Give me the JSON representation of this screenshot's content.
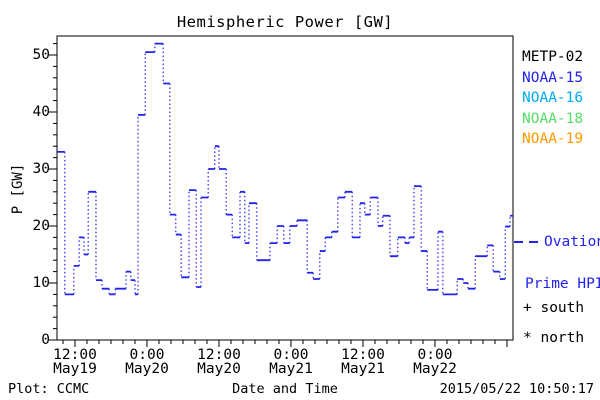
{
  "title": "Hemispheric Power [GW]",
  "axes": {
    "x_label": "Date and Time",
    "y_label": "P [GW]",
    "y_ticks": [
      0,
      10,
      20,
      30,
      40,
      50
    ],
    "y_minor_step": 2,
    "ylim": [
      0,
      53.3
    ],
    "x_start": "2015-05-19 09:00 UT",
    "xlim_hours": [
      0,
      76
    ],
    "x_minor_step_hours": 2,
    "x_major_ticks": [
      {
        "hours": 3,
        "time": "12:00",
        "date": "May19"
      },
      {
        "hours": 15,
        "time": "0:00",
        "date": "May20"
      },
      {
        "hours": 27,
        "time": "12:00",
        "date": "May20"
      },
      {
        "hours": 39,
        "time": "0:00",
        "date": "May21"
      },
      {
        "hours": 51,
        "time": "12:00",
        "date": "May21"
      },
      {
        "hours": 63,
        "time": "0:00",
        "date": "May22"
      },
      {
        "hours": 75,
        "time": "",
        "date": ""
      }
    ]
  },
  "legend": {
    "satellites": [
      {
        "label": "METP-02",
        "color": "#000000"
      },
      {
        "label": "NOAA-15",
        "color": "#2222ee"
      },
      {
        "label": "NOAA-16",
        "color": "#00aaee"
      },
      {
        "label": "NOAA-18",
        "color": "#55dd66"
      },
      {
        "label": "NOAA-19",
        "color": "#ff9900"
      }
    ],
    "line_series": {
      "label_line1": "Ovation",
      "label_line2": "Prime HPI",
      "color": "#2222ee"
    },
    "hemisphere_markers": [
      {
        "symbol": "+",
        "label": "south"
      },
      {
        "symbol": "*",
        "label": "north"
      }
    ]
  },
  "footer": {
    "left": "Plot: CCMC",
    "center": "Date and Time",
    "right": "2015/05/22 10:50:17"
  },
  "colors": {
    "curve": "#2222ee",
    "axis": "#000000",
    "background": "#ffffff"
  },
  "chart_data": {
    "type": "line",
    "style": "step-post, dotted vertical connectors",
    "title": "Hemispheric Power [GW]",
    "xlabel": "Date and Time",
    "ylabel": "P [GW]",
    "x_units": "hours since 2015-05-19 09:00 UT",
    "xlim": [
      0,
      76
    ],
    "ylim": [
      0,
      53.3
    ],
    "grid": false,
    "series": [
      {
        "name": "Ovation Prime HPI",
        "color": "#2222ee",
        "points_hours_gw": [
          [
            0,
            33
          ],
          [
            1.3,
            8
          ],
          [
            2.8,
            13
          ],
          [
            3.7,
            18
          ],
          [
            4.5,
            15
          ],
          [
            5.2,
            26
          ],
          [
            6.5,
            10.5
          ],
          [
            7.5,
            9
          ],
          [
            8.7,
            8
          ],
          [
            9.7,
            9
          ],
          [
            11.5,
            12
          ],
          [
            12.3,
            10.5
          ],
          [
            13,
            8
          ],
          [
            13.5,
            39.5
          ],
          [
            14.7,
            50.5
          ],
          [
            16.3,
            52
          ],
          [
            17.7,
            45
          ],
          [
            18.8,
            22
          ],
          [
            19.8,
            18.5
          ],
          [
            20.7,
            11
          ],
          [
            22,
            26.3
          ],
          [
            23.2,
            9.3
          ],
          [
            24,
            25
          ],
          [
            25.2,
            30
          ],
          [
            26.3,
            34
          ],
          [
            27,
            30
          ],
          [
            28.2,
            22
          ],
          [
            29.2,
            18
          ],
          [
            30.5,
            26
          ],
          [
            31.3,
            17
          ],
          [
            32,
            24
          ],
          [
            33.3,
            14
          ],
          [
            35.5,
            17
          ],
          [
            36.7,
            20
          ],
          [
            37.8,
            17
          ],
          [
            38.8,
            20
          ],
          [
            40,
            21
          ],
          [
            41.7,
            11.8
          ],
          [
            42.7,
            10.7
          ],
          [
            43.8,
            15.6
          ],
          [
            44.7,
            18
          ],
          [
            45.8,
            19
          ],
          [
            46.8,
            25
          ],
          [
            48,
            26
          ],
          [
            49.2,
            18
          ],
          [
            50.5,
            24
          ],
          [
            51.3,
            22
          ],
          [
            52.2,
            25
          ],
          [
            53.5,
            20
          ],
          [
            54.3,
            21.8
          ],
          [
            55.5,
            14.7
          ],
          [
            56.8,
            18
          ],
          [
            58,
            17
          ],
          [
            58.7,
            18
          ],
          [
            59.5,
            27
          ],
          [
            60.7,
            15.6
          ],
          [
            61.7,
            8.8
          ],
          [
            63.5,
            19
          ],
          [
            64.3,
            8
          ],
          [
            66.7,
            10.7
          ],
          [
            67.7,
            10
          ],
          [
            68.5,
            9
          ],
          [
            69.7,
            14.7
          ],
          [
            71.7,
            16.6
          ],
          [
            72.7,
            12
          ],
          [
            73.8,
            10.7
          ],
          [
            74.7,
            19.9
          ],
          [
            75.5,
            21.8
          ]
        ]
      }
    ]
  }
}
